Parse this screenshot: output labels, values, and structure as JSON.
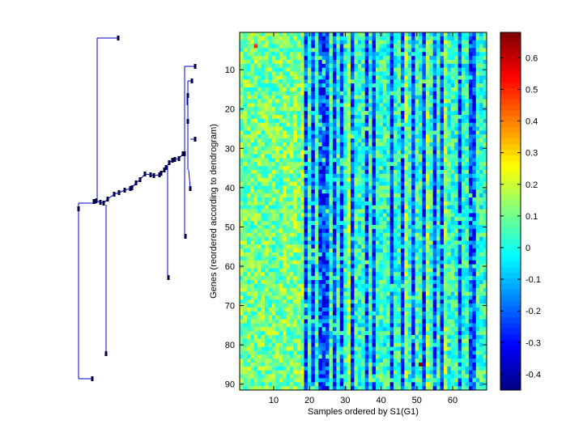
{
  "chart_data": [
    {
      "type": "dendrogram",
      "orientation": "left",
      "line_color": "#0000cc",
      "leaf_marker_color": "#000044",
      "leaf_count": 91
    },
    {
      "type": "heatmap",
      "colormap": "jet",
      "n_rows": 91,
      "n_cols": 69,
      "xlabel": "Samples ordered by S1(G1)",
      "ylabel": "Genes (reordered according to dendrogram)",
      "xlim": [
        0.5,
        69.5
      ],
      "ylim": [
        0.5,
        91.5
      ],
      "xticks": [
        10,
        20,
        30,
        40,
        50,
        60
      ],
      "yticks": [
        10,
        20,
        30,
        40,
        50,
        60,
        70,
        80,
        90
      ],
      "dark_columns": [
        19,
        21,
        23,
        24,
        25,
        27,
        29,
        32,
        36,
        38,
        43,
        46,
        49,
        52,
        55,
        57,
        62,
        65,
        66
      ],
      "light_columns": [
        13,
        16,
        18,
        31,
        47,
        53,
        58
      ],
      "hot_cells": [
        {
          "col": 51,
          "row": 85
        },
        {
          "col": 5,
          "row": 4
        }
      ],
      "colorbar": {
        "min": -0.45,
        "max": 0.68,
        "ticks": [
          -0.4,
          -0.3,
          -0.2,
          -0.1,
          0,
          0.1,
          0.2,
          0.3,
          0.4,
          0.5,
          0.6
        ],
        "tick_labels": [
          "-0.4",
          "-0.3",
          "-0.2",
          "-0.1",
          "0",
          "0.1",
          "0.2",
          "0.3",
          "0.4",
          "0.5",
          "0.6"
        ]
      }
    }
  ]
}
